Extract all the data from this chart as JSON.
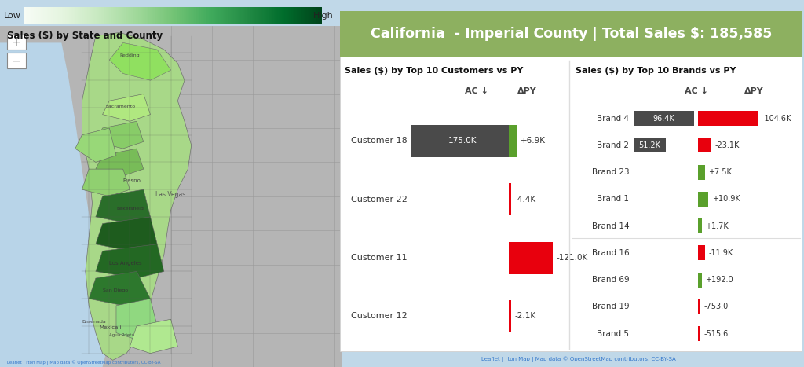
{
  "title": "California  - Imperial County | Total Sales $: 185,585",
  "title_bg": "#8db060",
  "panel_bg": "#ffffff",
  "map_title": "Sales ($) by State and County",
  "map_bg": "#b8d4e8",
  "land_bg": "#c8c8c8",
  "colorbar_low": "Low",
  "colorbar_high": "High",
  "customers_section_title": "Sales ($) by Top 10 Customers vs PY",
  "brands_section_title": "Sales ($) by Top 10 Brands vs PY",
  "col_header_ac": "AC ↓",
  "col_header_dpy": "ΔPY",
  "customers": [
    {
      "name": "Customer 18",
      "ac": 175000,
      "dpy": 6900,
      "dpy_label": "+6.9K",
      "ac_label": "175.0K"
    },
    {
      "name": "Customer 22",
      "ac": 0,
      "dpy": -4400,
      "dpy_label": "-4.4K",
      "ac_label": ""
    },
    {
      "name": "Customer 11",
      "ac": 0,
      "dpy": -121000,
      "dpy_label": "-121.0K",
      "ac_label": ""
    },
    {
      "name": "Customer 12",
      "ac": 0,
      "dpy": -2100,
      "dpy_label": "-2.1K",
      "ac_label": ""
    }
  ],
  "brands": [
    {
      "name": "Brand 4",
      "ac": 96400,
      "dpy": -104600,
      "dpy_label": "-104.6K",
      "ac_label": "96.4K"
    },
    {
      "name": "Brand 2",
      "ac": 51200,
      "dpy": -23100,
      "dpy_label": "-23.1K",
      "ac_label": "51.2K"
    },
    {
      "name": "Brand 23",
      "ac": 0,
      "dpy": 7500,
      "dpy_label": "+7.5K",
      "ac_label": ""
    },
    {
      "name": "Brand 1",
      "ac": 0,
      "dpy": 10900,
      "dpy_label": "+10.9K",
      "ac_label": ""
    },
    {
      "name": "Brand 14",
      "ac": 0,
      "dpy": 1700,
      "dpy_label": "+1.7K",
      "ac_label": ""
    },
    {
      "name": "Brand 16",
      "ac": 0,
      "dpy": -11900,
      "dpy_label": "-11.9K",
      "ac_label": ""
    },
    {
      "name": "Brand 69",
      "ac": 0,
      "dpy": 192,
      "dpy_label": "+192.0",
      "ac_label": ""
    },
    {
      "name": "Brand 19",
      "ac": 0,
      "dpy": -753,
      "dpy_label": "-753.0",
      "ac_label": ""
    },
    {
      "name": "Brand 5",
      "ac": 0,
      "dpy": -515.6,
      "dpy_label": "-515.6",
      "ac_label": ""
    }
  ],
  "bar_ac_color": "#4a4a4a",
  "bar_dpy_pos_color": "#5aa02c",
  "bar_dpy_neg_color": "#e8000d",
  "text_color": "#333333",
  "header_text_color": "#111111"
}
